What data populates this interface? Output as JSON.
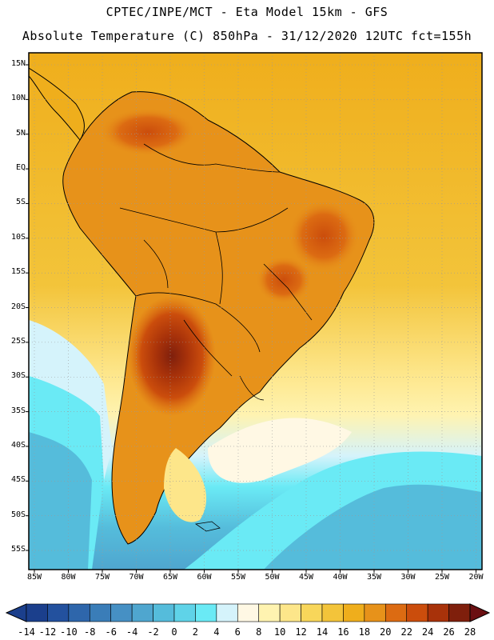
{
  "header": {
    "line1": "CPTEC/INPE/MCT  -  Eta Model 15km - GFS",
    "line2": "Absolute Temperature (C) 850hPa - 31/12/2020 12UTC fct=155h"
  },
  "map": {
    "lat_labels": [
      "15N",
      "10N",
      "5N",
      "EQ",
      "5S",
      "10S",
      "15S",
      "20S",
      "25S",
      "30S",
      "35S",
      "40S",
      "45S",
      "50S",
      "55S"
    ],
    "lon_labels": [
      "85W",
      "80W",
      "75W",
      "70W",
      "65W",
      "60W",
      "55W",
      "50W",
      "45W",
      "40W",
      "35W",
      "30W",
      "25W",
      "20W"
    ]
  },
  "colorbar": {
    "labels": [
      "-14",
      "-12",
      "-10",
      "-8",
      "-6",
      "-4",
      "-2",
      "0",
      "2",
      "4",
      "6",
      "8",
      "10",
      "12",
      "14",
      "16",
      "18",
      "20",
      "22",
      "24",
      "26",
      "28"
    ],
    "colors": [
      "#1b3f8c",
      "#23519e",
      "#2e66ab",
      "#3a7db8",
      "#4690c4",
      "#4fa6cf",
      "#55bcdb",
      "#5fd3e8",
      "#6aeaf5",
      "#d5f3fb",
      "#fff8e4",
      "#fff3b0",
      "#fde68a",
      "#f8d65a",
      "#f3c43a",
      "#efae1c",
      "#e7921a",
      "#dc6b12",
      "#cb4d0c",
      "#a8320a",
      "#7f1f0c"
    ]
  },
  "colors": {
    "land_border": "#000000",
    "grid": "#9a9a9a",
    "sea_north": "#efae1c",
    "sea_south": "#4fc6dc"
  }
}
